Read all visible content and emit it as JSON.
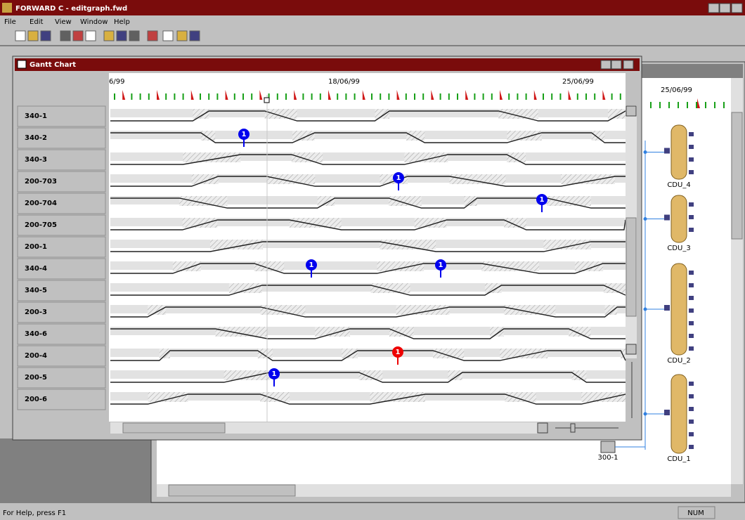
{
  "app": {
    "title": "FORWARD C - editgraph.fwd",
    "menu": [
      "File",
      "Edit",
      "View",
      "Window",
      "Help"
    ]
  },
  "gantt": {
    "title": "Gantt Chart",
    "dates": [
      "6/99",
      "18/06/99",
      "25/06/99"
    ],
    "rows": [
      {
        "label": "340-1"
      },
      {
        "label": "340-2",
        "markers": [
          {
            "label": "1",
            "color": "#0000ee"
          }
        ]
      },
      {
        "label": "340-3"
      },
      {
        "label": "200-703",
        "markers": [
          {
            "label": "1",
            "color": "#0000ee"
          }
        ]
      },
      {
        "label": "200-704",
        "markers": [
          {
            "label": "1",
            "color": "#0000ee"
          }
        ]
      },
      {
        "label": "200-705"
      },
      {
        "label": "200-1"
      },
      {
        "label": "340-4",
        "markers": [
          {
            "label": "1",
            "color": "#0000ee"
          },
          {
            "label": "1",
            "color": "#0000ee"
          }
        ]
      },
      {
        "label": "340-5"
      },
      {
        "label": "200-3"
      },
      {
        "label": "340-6"
      },
      {
        "label": "200-4",
        "markers": [
          {
            "label": "1",
            "color": "#ee0000"
          }
        ]
      },
      {
        "label": "200-5",
        "markers": [
          {
            "label": "1",
            "color": "#0000ee"
          }
        ]
      },
      {
        "label": "200-6"
      }
    ]
  },
  "network": {
    "date": "25/06/99",
    "units": [
      "CDU_4",
      "CDU_3",
      "CDU_2",
      "CDU_1"
    ],
    "tank": "300-1"
  },
  "status": {
    "help": "For Help, press F1",
    "num": "NUM"
  }
}
